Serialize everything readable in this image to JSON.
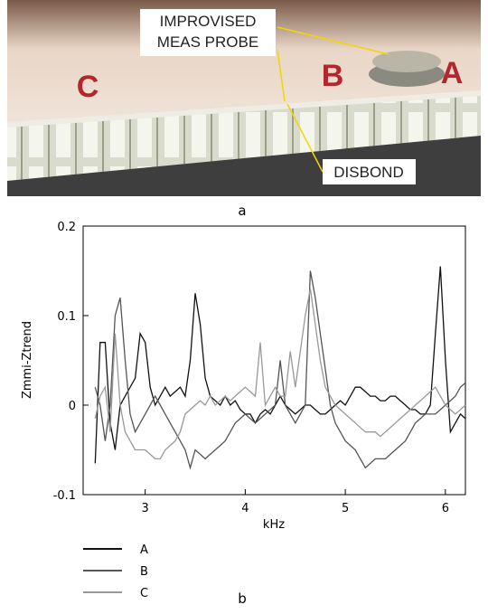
{
  "photo": {
    "probe_label": [
      "IMPROVISED",
      "MEAS PROBE"
    ],
    "disbond_label": "DISBOND",
    "letters": [
      "C",
      "B",
      "A"
    ],
    "caption": "a"
  },
  "chart_data": {
    "type": "line",
    "caption": "b",
    "xlabel": "kHz",
    "ylabel": "Zmmi-Ztrend",
    "xlim": [
      2.38,
      6.2
    ],
    "xticks": [
      3,
      4,
      5,
      6
    ],
    "ylim": [
      -0.1,
      0.2
    ],
    "yticks": [
      -0.1,
      0,
      0.1,
      0.2
    ],
    "x": [
      2.5,
      2.55,
      2.6,
      2.65,
      2.7,
      2.75,
      2.8,
      2.85,
      2.9,
      2.95,
      3.0,
      3.05,
      3.1,
      3.15,
      3.2,
      3.25,
      3.3,
      3.35,
      3.4,
      3.45,
      3.5,
      3.55,
      3.6,
      3.65,
      3.7,
      3.75,
      3.8,
      3.85,
      3.9,
      3.95,
      4.0,
      4.05,
      4.1,
      4.15,
      4.2,
      4.25,
      4.3,
      4.35,
      4.4,
      4.45,
      4.5,
      4.55,
      4.6,
      4.65,
      4.7,
      4.75,
      4.8,
      4.85,
      4.9,
      4.95,
      5.0,
      5.05,
      5.1,
      5.15,
      5.2,
      5.25,
      5.3,
      5.35,
      5.4,
      5.45,
      5.5,
      5.55,
      5.6,
      5.65,
      5.7,
      5.75,
      5.8,
      5.85,
      5.9,
      5.95,
      6.0,
      6.05,
      6.1,
      6.15,
      6.2
    ],
    "series": [
      {
        "name": "A",
        "color": "#111111",
        "values": [
          -0.065,
          0.07,
          0.07,
          -0.02,
          -0.05,
          0.0,
          0.01,
          0.02,
          0.03,
          0.08,
          0.07,
          0.02,
          0.0,
          0.01,
          0.02,
          0.01,
          0.015,
          0.02,
          0.01,
          0.05,
          0.125,
          0.09,
          0.03,
          0.01,
          0.005,
          0.0,
          0.01,
          0.0,
          0.005,
          -0.005,
          -0.01,
          -0.01,
          -0.02,
          -0.01,
          -0.005,
          -0.01,
          0.0,
          0.01,
          0.0,
          -0.005,
          -0.01,
          -0.005,
          0.0,
          0.0,
          -0.005,
          -0.01,
          -0.01,
          -0.005,
          0.0,
          0.005,
          0.0,
          0.01,
          0.02,
          0.02,
          0.015,
          0.01,
          0.01,
          0.005,
          0.005,
          0.01,
          0.01,
          0.005,
          0.0,
          -0.005,
          -0.005,
          -0.01,
          -0.01,
          0.0,
          0.08,
          0.155,
          0.05,
          -0.03,
          -0.02,
          -0.01,
          -0.015
        ]
      },
      {
        "name": "B",
        "color": "#555555",
        "values": [
          0.02,
          0.0,
          -0.04,
          0.0,
          0.1,
          0.12,
          0.05,
          -0.01,
          -0.03,
          -0.02,
          -0.01,
          0.0,
          0.01,
          0.0,
          -0.01,
          -0.02,
          -0.03,
          -0.04,
          -0.05,
          -0.07,
          -0.05,
          -0.055,
          -0.06,
          -0.055,
          -0.05,
          -0.045,
          -0.04,
          -0.03,
          -0.02,
          -0.015,
          -0.01,
          -0.015,
          -0.02,
          -0.015,
          -0.01,
          -0.005,
          0.0,
          0.05,
          0.0,
          -0.01,
          -0.02,
          -0.01,
          0.0,
          0.15,
          0.12,
          0.08,
          0.04,
          0.0,
          -0.02,
          -0.03,
          -0.04,
          -0.045,
          -0.05,
          -0.06,
          -0.07,
          -0.065,
          -0.06,
          -0.06,
          -0.06,
          -0.055,
          -0.05,
          -0.045,
          -0.04,
          -0.03,
          -0.02,
          -0.015,
          -0.01,
          -0.01,
          -0.01,
          -0.005,
          0.0,
          0.005,
          0.01,
          0.02,
          0.025
        ]
      },
      {
        "name": "C",
        "color": "#999999",
        "values": [
          -0.015,
          0.01,
          0.02,
          -0.03,
          0.08,
          0.0,
          -0.03,
          -0.04,
          -0.05,
          -0.05,
          -0.05,
          -0.055,
          -0.06,
          -0.06,
          -0.05,
          -0.045,
          -0.04,
          -0.03,
          -0.01,
          -0.005,
          0.0,
          0.005,
          0.0,
          0.01,
          0.0,
          0.005,
          0.01,
          0.005,
          0.01,
          0.015,
          0.02,
          0.015,
          0.01,
          0.07,
          0.0,
          0.01,
          0.02,
          0.01,
          0.01,
          0.06,
          0.02,
          0.06,
          0.1,
          0.13,
          0.09,
          0.05,
          0.02,
          0.01,
          0.0,
          -0.005,
          -0.01,
          -0.015,
          -0.02,
          -0.025,
          -0.03,
          -0.03,
          -0.03,
          -0.035,
          -0.03,
          -0.025,
          -0.02,
          -0.015,
          -0.01,
          -0.005,
          0.0,
          0.005,
          0.01,
          0.015,
          0.02,
          0.01,
          0.0,
          -0.005,
          -0.01,
          -0.005,
          0.0
        ]
      }
    ]
  }
}
